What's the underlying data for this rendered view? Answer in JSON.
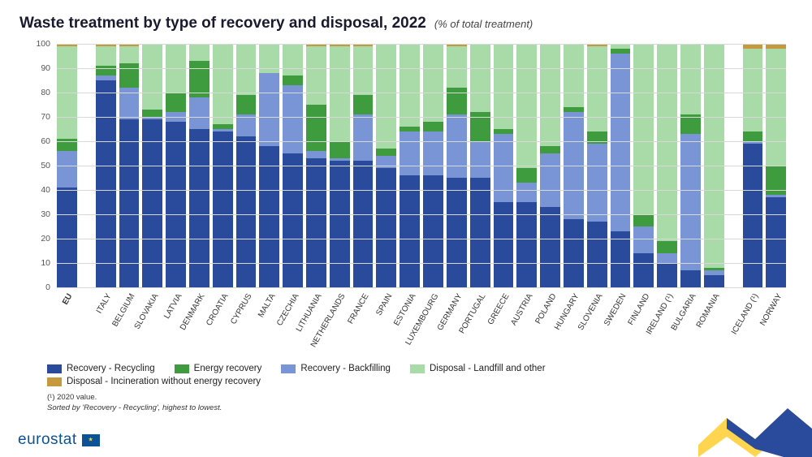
{
  "title": "Waste treatment by type of recovery and disposal, 2022",
  "subtitle": "(% of total treatment)",
  "y_axis": {
    "min": 0,
    "max": 100,
    "step": 10,
    "label_fontsize": 10.5,
    "label_color": "#555555"
  },
  "grid_color": "#d8d8d8",
  "background_color": "#ffffff",
  "series_colors": {
    "recycling": "#2a4a9b",
    "backfilling": "#7a95d6",
    "energy": "#3e9b3e",
    "landfill": "#a8dba8",
    "incineration": "#c59a3f"
  },
  "legend": [
    {
      "key": "recycling",
      "label": "Recovery - Recycling"
    },
    {
      "key": "energy",
      "label": "Energy recovery"
    },
    {
      "key": "backfilling",
      "label": "Recovery - Backfilling"
    },
    {
      "key": "landfill",
      "label": "Disposal - Landfill and other"
    },
    {
      "key": "incineration",
      "label": "Disposal - Incineration without energy recovery"
    }
  ],
  "footnote1": "(¹) 2020 value.",
  "footnote2": "Sorted by 'Recovery - Recycling', highest to lowest.",
  "logo_text": "eurostat",
  "source_logo_colors": {
    "blue": "#0b5394",
    "yellow": "#ffd54f"
  },
  "chart": {
    "type": "stacked-bar",
    "bar_width_ratio": 0.82,
    "stack_order": [
      "recycling",
      "backfilling",
      "energy",
      "landfill",
      "incineration"
    ],
    "groups": [
      {
        "items": [
          {
            "label": "EU",
            "bold": true,
            "recycling": 41,
            "backfilling": 15,
            "energy": 5,
            "landfill": 38,
            "incineration": 1
          }
        ]
      },
      {
        "items": [
          {
            "label": "ITALY",
            "recycling": 85,
            "backfilling": 2,
            "energy": 4,
            "landfill": 8,
            "incineration": 1
          },
          {
            "label": "BELGIUM",
            "recycling": 69,
            "backfilling": 13,
            "energy": 10,
            "landfill": 7,
            "incineration": 1
          },
          {
            "label": "SLOVAKIA",
            "recycling": 69,
            "backfilling": 1,
            "energy": 3,
            "landfill": 27,
            "incineration": 0
          },
          {
            "label": "LATVIA",
            "recycling": 68,
            "backfilling": 4,
            "energy": 8,
            "landfill": 20,
            "incineration": 0
          },
          {
            "label": "DENMARK",
            "recycling": 65,
            "backfilling": 13,
            "energy": 15,
            "landfill": 7,
            "incineration": 0
          },
          {
            "label": "CROATIA",
            "recycling": 64,
            "backfilling": 1,
            "energy": 2,
            "landfill": 33,
            "incineration": 0
          },
          {
            "label": "CYPRUS",
            "recycling": 62,
            "backfilling": 9,
            "energy": 8,
            "landfill": 21,
            "incineration": 0
          },
          {
            "label": "MALTA",
            "recycling": 58,
            "backfilling": 30,
            "energy": 0,
            "landfill": 12,
            "incineration": 0
          },
          {
            "label": "CZECHIA",
            "recycling": 55,
            "backfilling": 28,
            "energy": 4,
            "landfill": 13,
            "incineration": 0
          },
          {
            "label": "LITHUANIA",
            "recycling": 53,
            "backfilling": 3,
            "energy": 19,
            "landfill": 24,
            "incineration": 1
          },
          {
            "label": "NETHERLANDS",
            "recycling": 52,
            "backfilling": 1,
            "energy": 7,
            "landfill": 39,
            "incineration": 1
          },
          {
            "label": "FRANCE",
            "recycling": 52,
            "backfilling": 19,
            "energy": 8,
            "landfill": 20,
            "incineration": 1
          },
          {
            "label": "SPAIN",
            "recycling": 49,
            "backfilling": 5,
            "energy": 3,
            "landfill": 43,
            "incineration": 0
          },
          {
            "label": "ESTONIA",
            "recycling": 46,
            "backfilling": 18,
            "energy": 2,
            "landfill": 34,
            "incineration": 0
          },
          {
            "label": "LUXEMBOURG",
            "recycling": 46,
            "backfilling": 18,
            "energy": 4,
            "landfill": 32,
            "incineration": 0
          },
          {
            "label": "GERMANY",
            "recycling": 45,
            "backfilling": 26,
            "energy": 11,
            "landfill": 17,
            "incineration": 1
          },
          {
            "label": "PORTUGAL",
            "recycling": 45,
            "backfilling": 15,
            "energy": 12,
            "landfill": 28,
            "incineration": 0
          },
          {
            "label": "GREECE",
            "recycling": 35,
            "backfilling": 28,
            "energy": 2,
            "landfill": 35,
            "incineration": 0
          },
          {
            "label": "AUSTRIA",
            "recycling": 35,
            "backfilling": 8,
            "energy": 6,
            "landfill": 51,
            "incineration": 0
          },
          {
            "label": "POLAND",
            "recycling": 33,
            "backfilling": 22,
            "energy": 3,
            "landfill": 42,
            "incineration": 0
          },
          {
            "label": "HUNGARY",
            "recycling": 28,
            "backfilling": 44,
            "energy": 2,
            "landfill": 26,
            "incineration": 0
          },
          {
            "label": "SLOVENIA",
            "recycling": 27,
            "backfilling": 32,
            "energy": 5,
            "landfill": 35,
            "incineration": 1
          },
          {
            "label": "SWEDEN",
            "recycling": 23,
            "backfilling": 73,
            "energy": 2,
            "landfill": 2,
            "incineration": 0
          },
          {
            "label": "FINLAND",
            "recycling": 14,
            "backfilling": 11,
            "energy": 5,
            "landfill": 70,
            "incineration": 0
          },
          {
            "label": "IRELAND (¹)",
            "recycling": 10,
            "backfilling": 4,
            "energy": 5,
            "landfill": 81,
            "incineration": 0
          },
          {
            "label": "BULGARIA",
            "recycling": 7,
            "backfilling": 56,
            "energy": 8,
            "landfill": 29,
            "incineration": 0
          },
          {
            "label": "ROMANIA",
            "recycling": 5,
            "backfilling": 2,
            "energy": 1,
            "landfill": 92,
            "incineration": 0
          }
        ]
      },
      {
        "items": [
          {
            "label": "ICELAND (¹)",
            "recycling": 59,
            "backfilling": 1,
            "energy": 4,
            "landfill": 34,
            "incineration": 2
          },
          {
            "label": "NORWAY",
            "recycling": 37,
            "backfilling": 1,
            "energy": 12,
            "landfill": 48,
            "incineration": 2
          }
        ]
      }
    ]
  }
}
